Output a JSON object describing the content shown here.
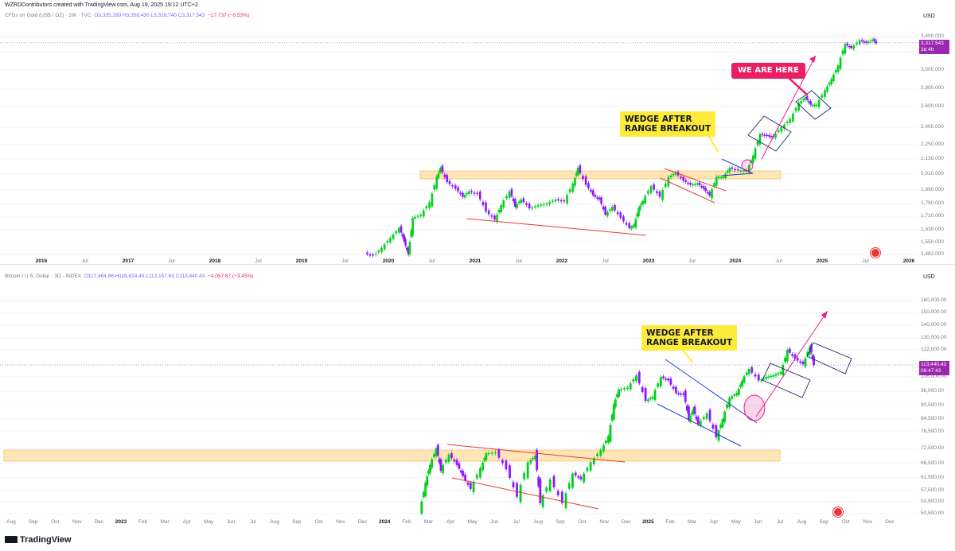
{
  "credit": "WZRDContributors created with TradingView.com, Aug 19, 2025 19:12 UTC+2",
  "footer": {
    "brand": "TradingView"
  },
  "colors": {
    "bull": "#00d11a",
    "bear": "#8d19ff",
    "zone": "#ffd27f",
    "trend": "#e53935",
    "wedge": "#1e3bd1",
    "arrow": "#e91e8c",
    "last": "#9c27b0"
  },
  "chart_data": [
    {
      "type": "candlestick",
      "legend": {
        "name": "CFDs on Gold (US$ / OZ) · 1W · TVC",
        "ohlc": "O3,335.280  H3,358.430  L3,316.740  C3,317.543",
        "change": "−17.737 (−0.53%)"
      },
      "currency": "USD",
      "last_price": "3,317.543",
      "countdown": "3d 4h",
      "y_ticks": [
        "3,400.000",
        "3,200.000",
        "3,000.000",
        "2,800.000",
        "2,600.000",
        "2,400.000",
        "2,250.000",
        "2,130.000",
        "2,010.000",
        "1,890.000",
        "1,790.000",
        "1,710.000",
        "1,630.000",
        "1,550.000",
        "1,482.000"
      ],
      "x_ticks": [
        {
          "label": "2016",
          "year": true
        },
        {
          "label": "Jul",
          "year": false
        },
        {
          "label": "2017",
          "year": true
        },
        {
          "label": "Jul",
          "year": false
        },
        {
          "label": "2018",
          "year": true
        },
        {
          "label": "Jul",
          "year": false
        },
        {
          "label": "2019",
          "year": true
        },
        {
          "label": "Jul",
          "year": false
        },
        {
          "label": "2020",
          "year": true
        },
        {
          "label": "Jul",
          "year": false
        },
        {
          "label": "2021",
          "year": true
        },
        {
          "label": "Jul",
          "year": false
        },
        {
          "label": "2022",
          "year": true
        },
        {
          "label": "Jul",
          "year": false
        },
        {
          "label": "2023",
          "year": true
        },
        {
          "label": "Jul",
          "year": false
        },
        {
          "label": "2024",
          "year": true
        },
        {
          "label": "Jul",
          "year": false
        },
        {
          "label": "2025",
          "year": true
        },
        {
          "label": "Jul",
          "year": false
        },
        {
          "label": "2026",
          "year": true
        }
      ],
      "series_path": [
        [
          2019.75,
          1490
        ],
        [
          2019.85,
          1470
        ],
        [
          2019.95,
          1520
        ],
        [
          2020.05,
          1580
        ],
        [
          2020.15,
          1640
        ],
        [
          2020.2,
          1560
        ],
        [
          2020.25,
          1480
        ],
        [
          2020.3,
          1700
        ],
        [
          2020.4,
          1720
        ],
        [
          2020.5,
          1800
        ],
        [
          2020.58,
          1990
        ],
        [
          2020.62,
          2060
        ],
        [
          2020.7,
          1950
        ],
        [
          2020.8,
          1900
        ],
        [
          2020.88,
          1840
        ],
        [
          2020.95,
          1880
        ],
        [
          2021.05,
          1860
        ],
        [
          2021.15,
          1740
        ],
        [
          2021.25,
          1690
        ],
        [
          2021.32,
          1780
        ],
        [
          2021.42,
          1880
        ],
        [
          2021.48,
          1770
        ],
        [
          2021.55,
          1820
        ],
        [
          2021.65,
          1760
        ],
        [
          2021.75,
          1780
        ],
        [
          2021.85,
          1790
        ],
        [
          2021.95,
          1820
        ],
        [
          2022.05,
          1810
        ],
        [
          2022.15,
          1940
        ],
        [
          2022.2,
          2060
        ],
        [
          2022.3,
          1930
        ],
        [
          2022.38,
          1850
        ],
        [
          2022.45,
          1820
        ],
        [
          2022.52,
          1720
        ],
        [
          2022.6,
          1770
        ],
        [
          2022.7,
          1700
        ],
        [
          2022.8,
          1640
        ],
        [
          2022.85,
          1660
        ],
        [
          2022.9,
          1760
        ],
        [
          2022.95,
          1810
        ],
        [
          2023.05,
          1920
        ],
        [
          2023.15,
          1840
        ],
        [
          2023.25,
          1990
        ],
        [
          2023.33,
          2020
        ],
        [
          2023.42,
          1960
        ],
        [
          2023.5,
          1930
        ],
        [
          2023.58,
          1940
        ],
        [
          2023.65,
          1900
        ],
        [
          2023.72,
          1850
        ],
        [
          2023.8,
          1990
        ],
        [
          2023.88,
          1990
        ],
        [
          2023.95,
          2060
        ],
        [
          2024.05,
          2040
        ],
        [
          2024.15,
          2040
        ],
        [
          2024.22,
          2160
        ],
        [
          2024.3,
          2340
        ],
        [
          2024.38,
          2330
        ],
        [
          2024.45,
          2320
        ],
        [
          2024.55,
          2400
        ],
        [
          2024.65,
          2480
        ],
        [
          2024.75,
          2640
        ],
        [
          2024.82,
          2700
        ],
        [
          2024.88,
          2620
        ],
        [
          2024.95,
          2620
        ],
        [
          2025.05,
          2780
        ],
        [
          2025.12,
          2900
        ],
        [
          2025.2,
          3050
        ],
        [
          2025.28,
          3300
        ],
        [
          2025.35,
          3250
        ],
        [
          2025.45,
          3350
        ],
        [
          2025.52,
          3320
        ],
        [
          2025.6,
          3360
        ],
        [
          2025.63,
          3317
        ]
      ],
      "annotations": {
        "callout_wedge": "WEDGE AFTER\nRANGE BREAKOUT",
        "callout_here": "WE ARE HERE"
      }
    },
    {
      "type": "candlestick",
      "legend": {
        "name": "Bitcoin / U.S. Dollar · 3D · INDEX",
        "ohlc": "O117,464.86  H118,624.45  L113,157.63  C113,440.43",
        "change": "−4,057.87 (−3.45%)"
      },
      "currency": "USD",
      "last_price": "113,440.43",
      "countdown": "06:47:43",
      "y_ticks": [
        "160,000.00",
        "150,000.00",
        "140,000.00",
        "130,000.00",
        "122,000.00",
        "114,000.00",
        "106,000.00",
        "98,000.00",
        "90,500.00",
        "84,500.00",
        "78,500.00",
        "72,500.00",
        "66,500.00",
        "61,500.00",
        "57,500.00",
        "53,900.00",
        "50,500.00"
      ],
      "x_ticks": [
        {
          "label": "Aug",
          "year": false
        },
        {
          "label": "Sep",
          "year": false
        },
        {
          "label": "Oct",
          "year": false
        },
        {
          "label": "Nov",
          "year": false
        },
        {
          "label": "Dec",
          "year": false
        },
        {
          "label": "2023",
          "year": true
        },
        {
          "label": "Feb",
          "year": false
        },
        {
          "label": "Mar",
          "year": false
        },
        {
          "label": "Apr",
          "year": false
        },
        {
          "label": "May",
          "year": false
        },
        {
          "label": "Jun",
          "year": false
        },
        {
          "label": "Jul",
          "year": false
        },
        {
          "label": "Aug",
          "year": false
        },
        {
          "label": "Sep",
          "year": false
        },
        {
          "label": "Oct",
          "year": false
        },
        {
          "label": "Nov",
          "year": false
        },
        {
          "label": "Dec",
          "year": false
        },
        {
          "label": "2024",
          "year": true
        },
        {
          "label": "Feb",
          "year": false
        },
        {
          "label": "Mar",
          "year": false
        },
        {
          "label": "Apr",
          "year": false
        },
        {
          "label": "May",
          "year": false
        },
        {
          "label": "Jun",
          "year": false
        },
        {
          "label": "Jul",
          "year": false
        },
        {
          "label": "Aug",
          "year": false
        },
        {
          "label": "Sep",
          "year": false
        },
        {
          "label": "Oct",
          "year": false
        },
        {
          "label": "Nov",
          "year": false
        },
        {
          "label": "Dec",
          "year": false
        },
        {
          "label": "2025",
          "year": true
        },
        {
          "label": "Feb",
          "year": false
        },
        {
          "label": "Mar",
          "year": false
        },
        {
          "label": "Apr",
          "year": false
        },
        {
          "label": "May",
          "year": false
        },
        {
          "label": "Jun",
          "year": false
        },
        {
          "label": "Jul",
          "year": false
        },
        {
          "label": "Aug",
          "year": false
        },
        {
          "label": "Sep",
          "year": false
        },
        {
          "label": "Oct",
          "year": false
        },
        {
          "label": "Nov",
          "year": false
        },
        {
          "label": "Dec",
          "year": false
        }
      ],
      "series_path": [
        [
          "2024-02-20",
          51000
        ],
        [
          "2024-02-28",
          60000
        ],
        [
          "2024-03-05",
          66000
        ],
        [
          "2024-03-14",
          72500
        ],
        [
          "2024-03-20",
          64000
        ],
        [
          "2024-04-01",
          70000
        ],
        [
          "2024-04-12",
          66000
        ],
        [
          "2024-04-20",
          62000
        ],
        [
          "2024-05-01",
          58000
        ],
        [
          "2024-05-15",
          65000
        ],
        [
          "2024-05-22",
          70500
        ],
        [
          "2024-06-05",
          71000
        ],
        [
          "2024-06-20",
          64500
        ],
        [
          "2024-07-05",
          55500
        ],
        [
          "2024-07-20",
          67000
        ],
        [
          "2024-07-29",
          69500
        ],
        [
          "2024-08-05",
          53500
        ],
        [
          "2024-08-20",
          61000
        ],
        [
          "2024-09-06",
          53500
        ],
        [
          "2024-09-20",
          63000
        ],
        [
          "2024-10-01",
          61000
        ],
        [
          "2024-10-15",
          67000
        ],
        [
          "2024-10-29",
          72000
        ],
        [
          "2024-11-08",
          77000
        ],
        [
          "2024-11-15",
          91000
        ],
        [
          "2024-11-22",
          99000
        ],
        [
          "2024-12-05",
          100000
        ],
        [
          "2024-12-17",
          107000
        ],
        [
          "2024-12-30",
          93000
        ],
        [
          "2025-01-08",
          95000
        ],
        [
          "2025-01-20",
          106000
        ],
        [
          "2025-01-30",
          104000
        ],
        [
          "2025-02-10",
          97000
        ],
        [
          "2025-02-20",
          96500
        ],
        [
          "2025-02-27",
          84000
        ],
        [
          "2025-03-05",
          89000
        ],
        [
          "2025-03-12",
          82000
        ],
        [
          "2025-03-25",
          87000
        ],
        [
          "2025-04-07",
          76500
        ],
        [
          "2025-04-15",
          84500
        ],
        [
          "2025-04-25",
          94500
        ],
        [
          "2025-05-05",
          97000
        ],
        [
          "2025-05-12",
          104000
        ],
        [
          "2025-05-22",
          111000
        ],
        [
          "2025-06-05",
          104000
        ],
        [
          "2025-06-15",
          106000
        ],
        [
          "2025-06-25",
          107000
        ],
        [
          "2025-07-05",
          109000
        ],
        [
          "2025-07-14",
          122000
        ],
        [
          "2025-07-25",
          117000
        ],
        [
          "2025-08-05",
          114000
        ],
        [
          "2025-08-14",
          124000
        ],
        [
          "2025-08-19",
          113440
        ]
      ],
      "annotations": {
        "callout_wedge": "WEDGE AFTER\nRANGE BREAKOUT"
      }
    }
  ]
}
